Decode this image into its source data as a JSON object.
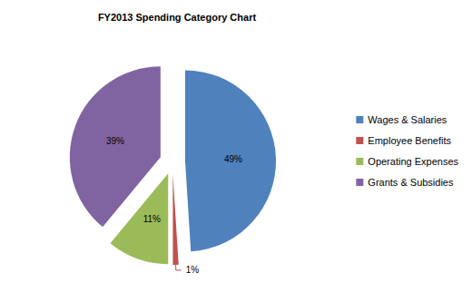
{
  "chart_data": {
    "type": "pie",
    "title": "FY2013 Spending Category Chart",
    "categories": [
      "Wages & Salaries",
      "Employee Benefits",
      "Operating Expenses",
      "Grants & Subsidies"
    ],
    "values": [
      49,
      1,
      11,
      39
    ],
    "value_labels": [
      "49%",
      "1%",
      "11%",
      "39%"
    ],
    "colors": [
      "#4F81BD",
      "#C0504D",
      "#9BBB59",
      "#8064A2"
    ],
    "legend": "right",
    "data_labels": true
  }
}
